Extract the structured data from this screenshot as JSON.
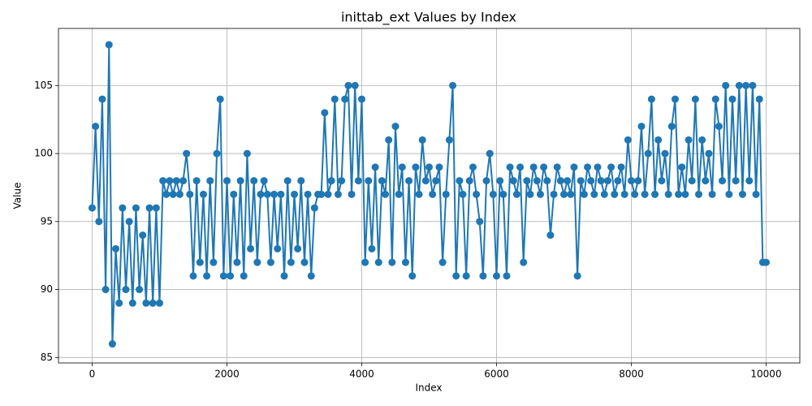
{
  "chart_data": {
    "type": "line",
    "title": "inittab_ext Values by Index",
    "x_label": "Index",
    "y_label": "Value",
    "xlim": [
      -500,
      10500
    ],
    "ylim": [
      84.6,
      109.2
    ],
    "xticks": [
      0,
      2000,
      4000,
      6000,
      8000,
      10000
    ],
    "yticks": [
      85,
      90,
      95,
      100,
      105
    ],
    "grid": true,
    "marker": true,
    "series": [
      {
        "color": "#1f77b4",
        "x": [
          0,
          50,
          100,
          150,
          200,
          250,
          300,
          350,
          400,
          450,
          500,
          550,
          600,
          650,
          700,
          750,
          800,
          850,
          900,
          950,
          1000,
          1050,
          1100,
          1150,
          1200,
          1250,
          1300,
          1350,
          1400,
          1450,
          1500,
          1550,
          1600,
          1650,
          1700,
          1750,
          1800,
          1850,
          1900,
          1950,
          2000,
          2050,
          2100,
          2150,
          2200,
          2250,
          2300,
          2350,
          2400,
          2450,
          2500,
          2550,
          2600,
          2650,
          2700,
          2750,
          2800,
          2850,
          2900,
          2950,
          3000,
          3050,
          3100,
          3150,
          3200,
          3250,
          3300,
          3350,
          3400,
          3450,
          3500,
          3550,
          3600,
          3650,
          3700,
          3750,
          3800,
          3850,
          3900,
          3950,
          4000,
          4050,
          4100,
          4150,
          4200,
          4250,
          4300,
          4350,
          4400,
          4450,
          4500,
          4550,
          4600,
          4650,
          4700,
          4750,
          4800,
          4850,
          4900,
          4950,
          5000,
          5050,
          5100,
          5150,
          5200,
          5250,
          5300,
          5350,
          5400,
          5450,
          5500,
          5550,
          5600,
          5650,
          5700,
          5750,
          5800,
          5850,
          5900,
          5950,
          6000,
          6050,
          6100,
          6150,
          6200,
          6250,
          6300,
          6350,
          6400,
          6450,
          6500,
          6550,
          6600,
          6650,
          6700,
          6750,
          6800,
          6850,
          6900,
          6950,
          7000,
          7050,
          7100,
          7150,
          7200,
          7250,
          7300,
          7350,
          7400,
          7450,
          7500,
          7550,
          7600,
          7650,
          7700,
          7750,
          7800,
          7850,
          7900,
          7950,
          8000,
          8050,
          8100,
          8150,
          8200,
          8250,
          8300,
          8350,
          8400,
          8450,
          8500,
          8550,
          8600,
          8650,
          8700,
          8750,
          8800,
          8850,
          8900,
          8950,
          9000,
          9050,
          9100,
          9150,
          9200,
          9250,
          9300,
          9350,
          9400,
          9450,
          9500,
          9550,
          9600,
          9650,
          9700,
          9750,
          9800,
          9850,
          9900,
          9950,
          10000
        ],
        "values": [
          96,
          102,
          95,
          104,
          90,
          108,
          86,
          93,
          89,
          96,
          90,
          95,
          89,
          96,
          90,
          94,
          89,
          96,
          89,
          96,
          89,
          98,
          97,
          98,
          97,
          98,
          97,
          98,
          100,
          97,
          91,
          98,
          92,
          97,
          91,
          98,
          92,
          100,
          104,
          91,
          98,
          91,
          97,
          92,
          98,
          91,
          100,
          93,
          98,
          92,
          97,
          98,
          97,
          92,
          97,
          93,
          97,
          91,
          98,
          92,
          97,
          93,
          98,
          92,
          97,
          91,
          96,
          97,
          97,
          103,
          97,
          98,
          104,
          97,
          98,
          104,
          105,
          97,
          105,
          98,
          104,
          92,
          98,
          93,
          99,
          92,
          98,
          97,
          101,
          92,
          102,
          97,
          99,
          92,
          98,
          91,
          99,
          97,
          101,
          98,
          99,
          97,
          98,
          99,
          92,
          97,
          101,
          105,
          91,
          98,
          97,
          91,
          98,
          99,
          97,
          95,
          91,
          98,
          100,
          97,
          91,
          98,
          97,
          91,
          99,
          98,
          97,
          99,
          92,
          98,
          97,
          99,
          98,
          97,
          99,
          98,
          94,
          97,
          99,
          98,
          97,
          98,
          97,
          99,
          91,
          98,
          97,
          99,
          98,
          97,
          99,
          98,
          97,
          98,
          99,
          97,
          98,
          99,
          97,
          101,
          98,
          97,
          98,
          102,
          97,
          100,
          104,
          97,
          101,
          98,
          100,
          97,
          102,
          104,
          97,
          99,
          97,
          101,
          98,
          104,
          97,
          101,
          98,
          100,
          97,
          104,
          102,
          98,
          105,
          97,
          104,
          98,
          105,
          97,
          105,
          98,
          105,
          97,
          104,
          92,
          92
        ]
      }
    ]
  }
}
